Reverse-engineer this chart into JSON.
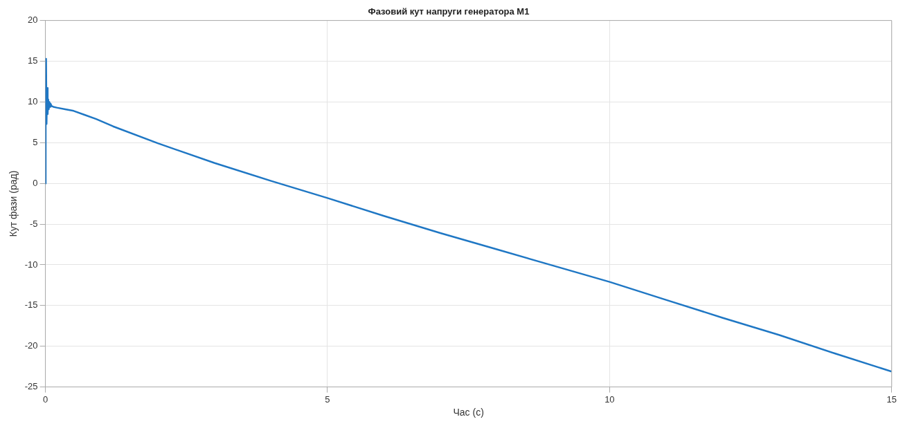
{
  "chart_data": {
    "type": "line",
    "title": "Фазовий кут напруги генератора M1",
    "xlabel": "Час (с)",
    "ylabel": "Кут фази (рад)",
    "x": [
      0,
      0.005,
      0.012,
      0.02,
      0.03,
      0.04,
      0.05,
      0.06,
      0.07,
      0.08,
      0.09,
      0.11,
      0.14,
      0.2,
      0.35,
      0.5,
      0.7,
      0.9,
      1.2,
      2,
      3,
      4,
      5,
      6,
      7,
      8,
      9,
      10,
      11,
      12,
      13,
      14,
      15
    ],
    "series": [
      {
        "color": "#1f77c4",
        "values": [
          0,
          9,
          15.3,
          7.3,
          11.7,
          8.5,
          10.3,
          9.1,
          10,
          9.4,
          9.8,
          9.5,
          9.4,
          9.3,
          9.1,
          8.9,
          8.4,
          7.9,
          7,
          4.9,
          2.5,
          0.3,
          -1.8,
          -4,
          -6.1,
          -8.1,
          -10.1,
          -12.1,
          -14.3,
          -16.5,
          -18.6,
          -20.9,
          -23.1
        ]
      }
    ],
    "xlim": [
      0,
      15
    ],
    "xticks": [
      0,
      5,
      10,
      15
    ],
    "ylim": [
      -25,
      20
    ],
    "yticks": [
      -25,
      -20,
      -15,
      -10,
      -5,
      0,
      5,
      10,
      15,
      20
    ],
    "grid": true,
    "line_style": "solid",
    "marker": "none"
  }
}
